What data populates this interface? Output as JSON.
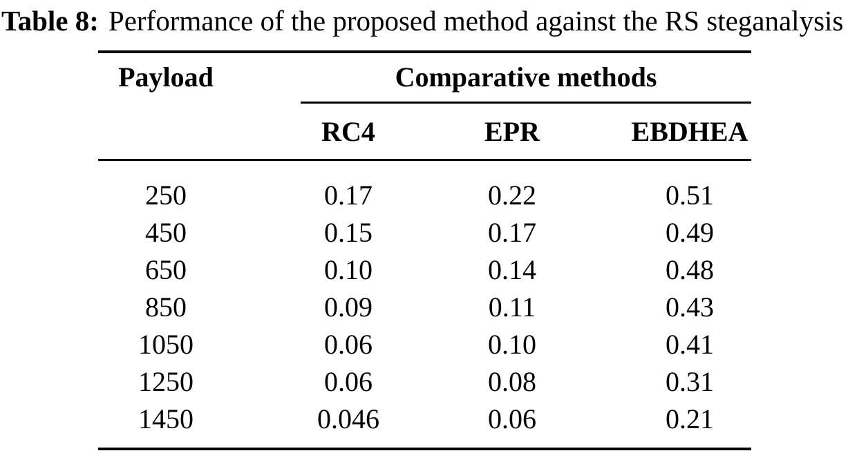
{
  "caption": {
    "label": "Table 8:",
    "text": "Performance of the proposed method against the RS steganalysis"
  },
  "table": {
    "col1_header": "Payload",
    "group_header": "Comparative methods",
    "method_headers": [
      "RC4",
      "EPR",
      "EBDHEA"
    ],
    "rows": [
      {
        "payload": "250",
        "values": [
          "0.17",
          "0.22",
          "0.51"
        ]
      },
      {
        "payload": "450",
        "values": [
          "0.15",
          "0.17",
          "0.49"
        ]
      },
      {
        "payload": "650",
        "values": [
          "0.10",
          "0.14",
          "0.48"
        ]
      },
      {
        "payload": "850",
        "values": [
          "0.09",
          "0.11",
          "0.43"
        ]
      },
      {
        "payload": "1050",
        "values": [
          "0.06",
          "0.10",
          "0.41"
        ]
      },
      {
        "payload": "1250",
        "values": [
          "0.06",
          "0.08",
          "0.31"
        ]
      },
      {
        "payload": "1450",
        "values": [
          "0.046",
          "0.06",
          "0.21"
        ]
      }
    ]
  },
  "colors": {
    "text": "#000000",
    "background": "#ffffff",
    "rule": "#000000"
  }
}
